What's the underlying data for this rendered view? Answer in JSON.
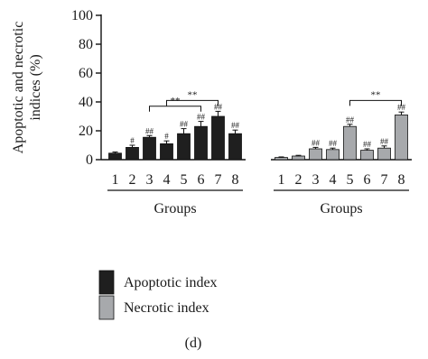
{
  "chart_data": {
    "type": "bar",
    "ylabel_lines": [
      "Apoptotic and necrotic",
      "indices (%)"
    ],
    "ylim": [
      0,
      100
    ],
    "yticks": [
      0,
      20,
      40,
      60,
      80,
      100
    ],
    "grid": false,
    "legend_position": "bottom-left",
    "caption": "(d)",
    "panels": [
      {
        "series_name": "Apoptotic index",
        "color": "#1f1f1f",
        "xlabel": "Groups",
        "categories": [
          "1",
          "2",
          "3",
          "4",
          "5",
          "6",
          "7",
          "8"
        ],
        "values": [
          4.5,
          8.5,
          15.5,
          11,
          18,
          23,
          30,
          18
        ],
        "errors": [
          0.8,
          1.5,
          1.2,
          2,
          3.5,
          3.5,
          3.5,
          2.5
        ],
        "marks": [
          "",
          "#",
          "##",
          "#",
          "##",
          "##",
          "##",
          "##"
        ],
        "brackets": [
          {
            "from": "3",
            "to": "6",
            "label": "**",
            "level": 37
          },
          {
            "from": "4",
            "to": "7",
            "label": "**",
            "level": 41
          }
        ]
      },
      {
        "series_name": "Necrotic index",
        "color": "#a7a9ac",
        "xlabel": "Groups",
        "categories": [
          "1",
          "2",
          "3",
          "4",
          "5",
          "6",
          "7",
          "8"
        ],
        "values": [
          1.5,
          2.5,
          7.5,
          7,
          23,
          6.5,
          8,
          31
        ],
        "errors": [
          0.4,
          0.5,
          1,
          1,
          1.5,
          1,
          1.5,
          2
        ],
        "marks": [
          "",
          "",
          "##",
          "##",
          "##",
          "##",
          "##",
          "##"
        ],
        "brackets": [
          {
            "from": "5",
            "to": "8",
            "label": "**",
            "level": 41
          }
        ]
      }
    ]
  }
}
